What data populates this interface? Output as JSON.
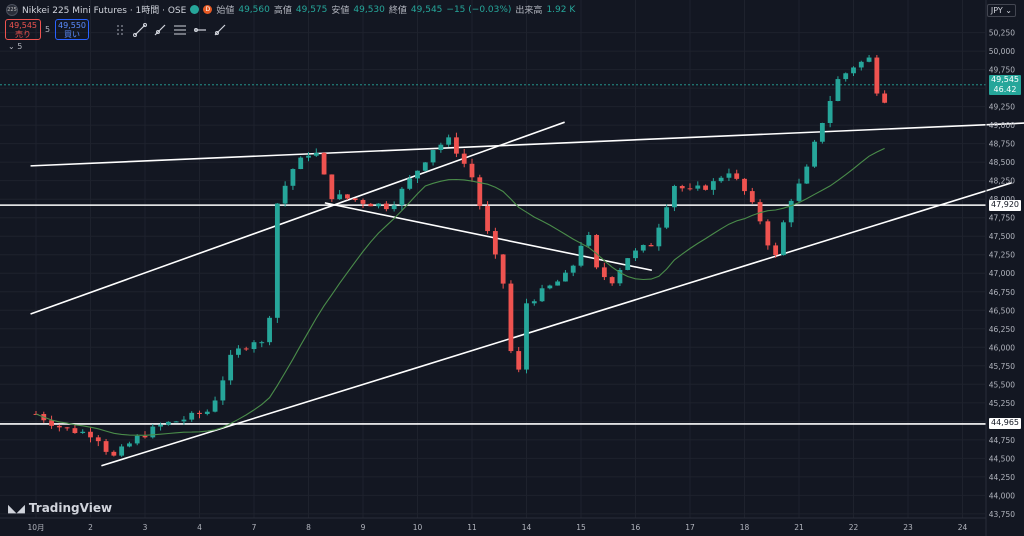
{
  "header": {
    "symbol": "Nikkei 225 Mini Futures · 1時間 · OSE",
    "open_label": "始値",
    "open": "49,560",
    "high_label": "高値",
    "high": "49,575",
    "low_label": "安値",
    "low": "49,530",
    "close_label": "終値",
    "close": "49,545",
    "change": "−15 (−0.03%)",
    "volume_label": "出来高",
    "volume": "1.92 K",
    "symbol_icon": "225",
    "d_badge": "D"
  },
  "trade": {
    "sell_price": "49,545",
    "sell_label": "売り",
    "spread": "5",
    "buy_price": "49,550",
    "buy_label": "買い"
  },
  "indicator_toggle": "5",
  "currency": "JPY",
  "branding": "TradingView",
  "colors": {
    "up": "#26a69a",
    "down": "#ef5350",
    "ma": "#4a8c4a",
    "line": "#ffffff",
    "bg": "#131722"
  },
  "chart_data": {
    "type": "candlestick",
    "x_ticks": [
      "10月",
      "2",
      "3",
      "4",
      "7",
      "8",
      "9",
      "10",
      "11",
      "14",
      "15",
      "16",
      "17",
      "18",
      "21",
      "22",
      "23",
      "24"
    ],
    "y_ticks": [
      43750,
      44000,
      44250,
      44500,
      44750,
      45000,
      45250,
      45500,
      45750,
      46000,
      46250,
      46500,
      46750,
      47000,
      47250,
      47500,
      47750,
      48000,
      48250,
      48500,
      48750,
      49000,
      49250,
      49500,
      49750,
      50000,
      50250
    ],
    "y_tick_labels": [
      "43,750",
      "44,000",
      "44,250",
      "44,500",
      "44,750",
      "45,000",
      "45,250",
      "45,500",
      "45,750",
      "46,000",
      "46,250",
      "46,500",
      "46,750",
      "47,000",
      "47,250",
      "47,500",
      "47,750",
      "48,000",
      "48,250",
      "48,500",
      "48,750",
      "49,000",
      "49,250",
      "49,500",
      "49,750",
      "50,000",
      "50,250"
    ],
    "ylim": [
      43600,
      50420
    ],
    "price_tags": [
      {
        "label": "49,545",
        "sub": "46.42",
        "value": 49545,
        "color": "#26a69a"
      },
      {
        "label": "47,920",
        "value": 47920,
        "color": "#ffffff"
      },
      {
        "label": "44,965",
        "value": 44965,
        "color": "#ffffff"
      }
    ],
    "horizontal_lines": [
      47920,
      44965
    ],
    "path_anchors": [
      [
        0,
        45100
      ],
      [
        0.5,
        44900
      ],
      [
        1.1,
        44820
      ],
      [
        1.4,
        44500
      ],
      [
        1.8,
        44750
      ],
      [
        2.3,
        44950
      ],
      [
        2.8,
        45050
      ],
      [
        3.2,
        45150
      ],
      [
        3.6,
        45900
      ],
      [
        4.0,
        46100
      ],
      [
        4.25,
        46000
      ],
      [
        4.4,
        47900
      ],
      [
        4.7,
        48400
      ],
      [
        5.1,
        48700
      ],
      [
        5.4,
        48050
      ],
      [
        5.8,
        48000
      ],
      [
        6.1,
        47950
      ],
      [
        6.5,
        47900
      ],
      [
        6.9,
        48300
      ],
      [
        7.3,
        48700
      ],
      [
        7.6,
        48800
      ],
      [
        8.0,
        48300
      ],
      [
        8.3,
        47500
      ],
      [
        8.6,
        46800
      ],
      [
        8.8,
        45300
      ],
      [
        9.0,
        46600
      ],
      [
        9.4,
        46800
      ],
      [
        9.8,
        47000
      ],
      [
        10.1,
        47600
      ],
      [
        10.3,
        47000
      ],
      [
        10.6,
        46900
      ],
      [
        10.8,
        47200
      ],
      [
        11.3,
        47400
      ],
      [
        11.7,
        48200
      ],
      [
        12.0,
        48100
      ],
      [
        12.4,
        48200
      ],
      [
        12.7,
        48400
      ],
      [
        13.0,
        48100
      ],
      [
        13.3,
        47700
      ],
      [
        13.55,
        47150
      ],
      [
        13.8,
        47950
      ],
      [
        14.1,
        48300
      ],
      [
        14.4,
        49000
      ],
      [
        14.7,
        49600
      ],
      [
        15.0,
        49800
      ],
      [
        15.3,
        49900
      ],
      [
        15.5,
        49250
      ],
      [
        15.7,
        49550
      ]
    ],
    "moving_average_period": 20,
    "trendlines": [
      {
        "from": [
          -0.1,
          48450
        ],
        "to": [
          18.2,
          49030
        ]
      },
      {
        "from": [
          -0.1,
          46450
        ],
        "to": [
          9.7,
          49040
        ]
      },
      {
        "from": [
          1.2,
          44400
        ],
        "to": [
          17.9,
          48220
        ]
      },
      {
        "from": [
          5.3,
          47950
        ],
        "to": [
          11.3,
          47040
        ]
      }
    ]
  }
}
